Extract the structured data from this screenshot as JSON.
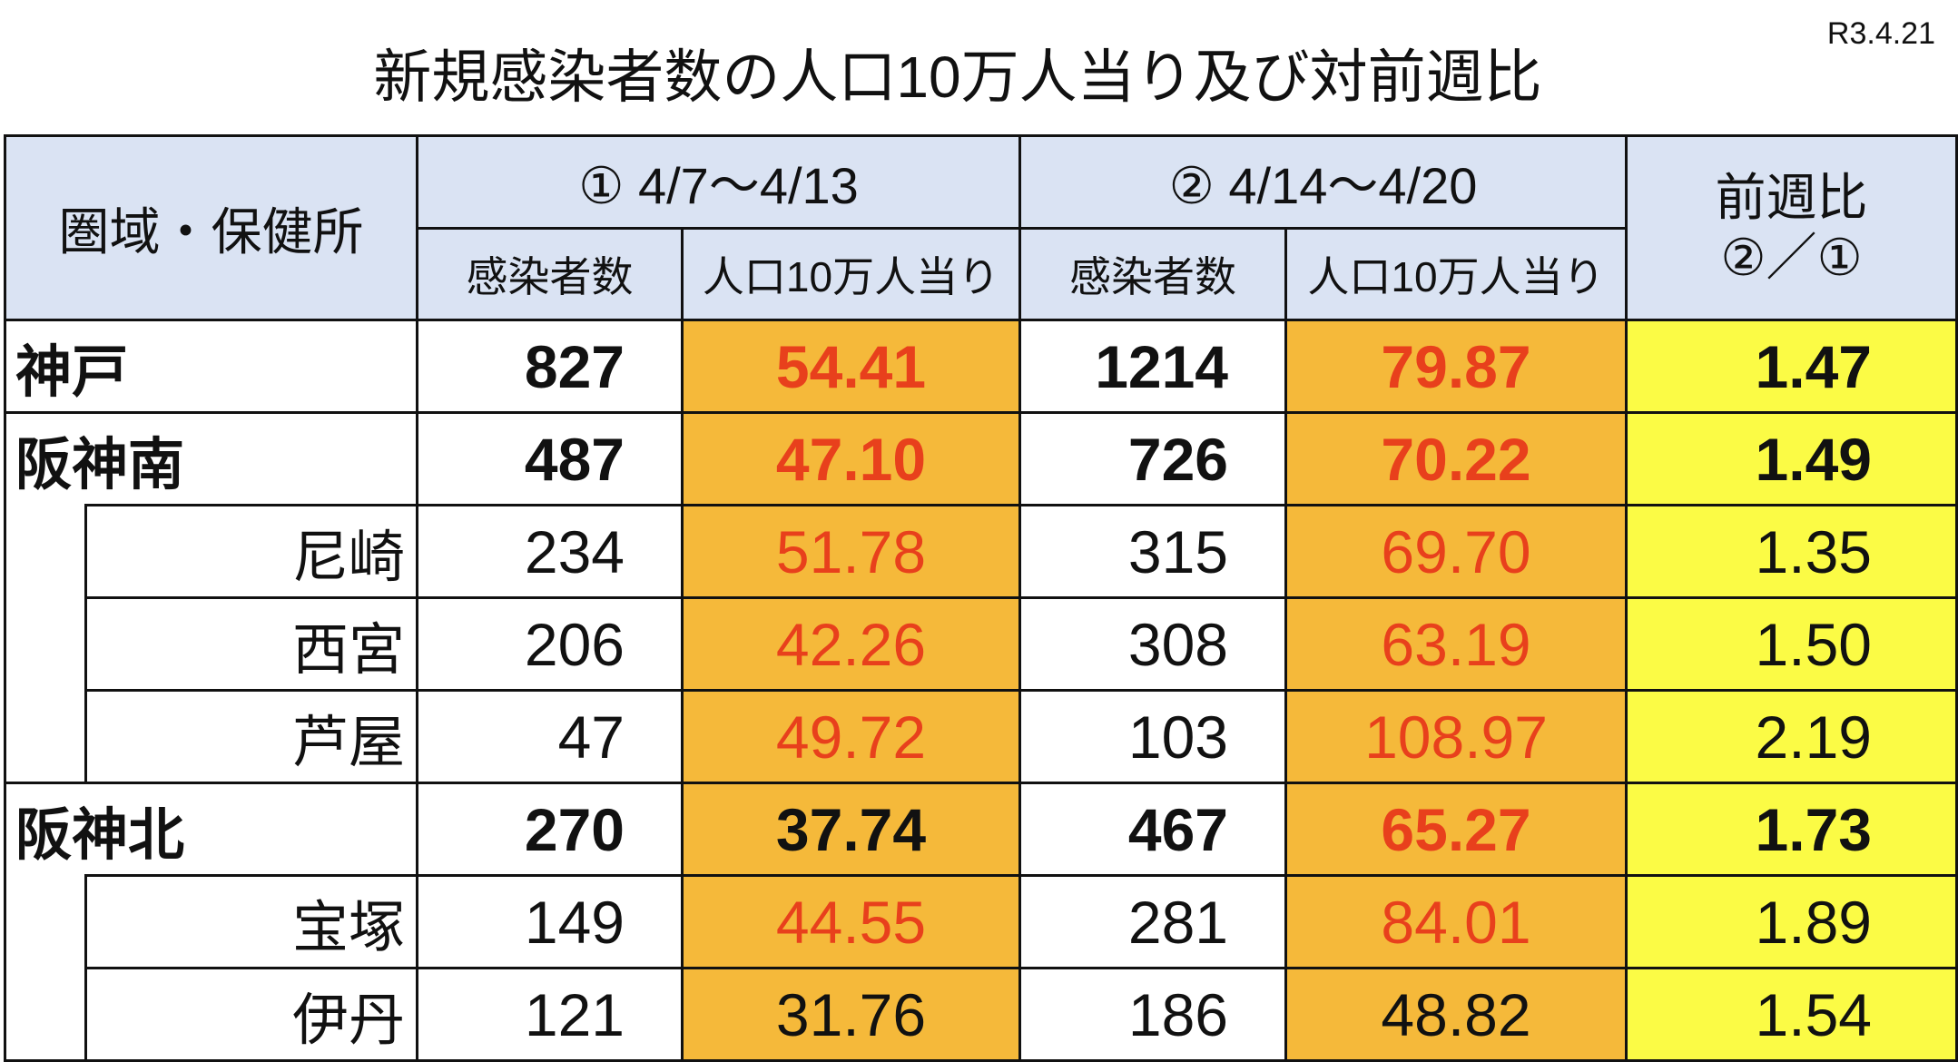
{
  "header": {
    "title": "新規感染者数の人口10万人当り及び対前週比",
    "date": "R3.4.21"
  },
  "table": {
    "headers": [
      "圏域・保健所",
      "① 4/7～4/13",
      "② 4/14～4/20",
      [
        "前週比",
        "②／①"
      ]
    ],
    "subheaders": [
      "感染者数",
      "人口10万人当り",
      "感染者数",
      "人口10万人当り"
    ],
    "rows": [
      [
        "神戸",
        "827",
        "54.41",
        "1214",
        "79.87",
        "1.47"
      ],
      [
        "阪神南",
        "487",
        "47.10",
        "726",
        "70.22",
        "1.49"
      ],
      [
        "尼崎",
        "234",
        "51.78",
        "315",
        "69.70",
        "1.35"
      ],
      [
        "西宮",
        "206",
        "42.26",
        "308",
        "63.19",
        "1.50"
      ],
      [
        "芦屋",
        "47",
        "49.72",
        "103",
        "108.97",
        "2.19"
      ],
      [
        "阪神北",
        "270",
        "37.74",
        "467",
        "65.27",
        "1.73"
      ],
      [
        "宝塚",
        "149",
        "44.55",
        "281",
        "84.01",
        "1.89"
      ],
      [
        "伊丹",
        "121",
        "31.76",
        "186",
        "48.82",
        "1.54"
      ]
    ]
  }
}
